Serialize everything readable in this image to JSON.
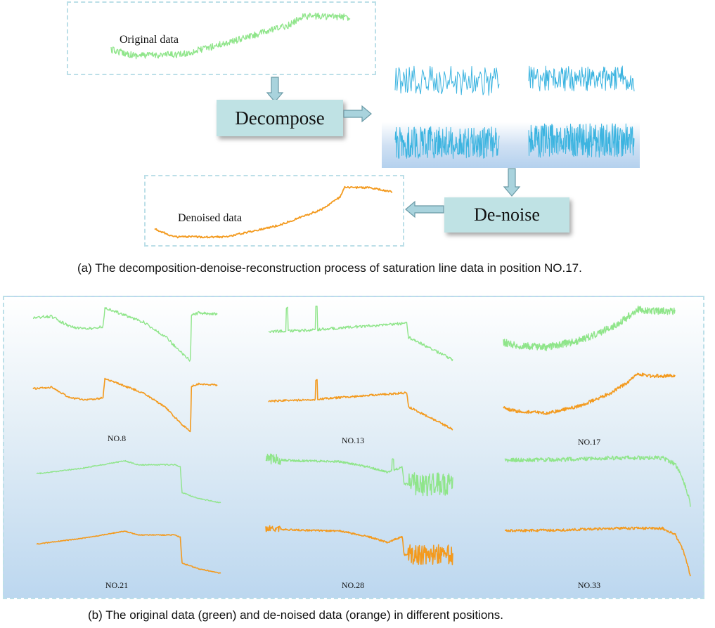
{
  "panel_a": {
    "original_label": "Original data",
    "decompose_label": "Decompose",
    "denoise_label": "De-noise",
    "denoised_label": "Denoised data",
    "caption": "(a) The decomposition-denoise-reconstruction process of saturation line data in position NO.17."
  },
  "panel_b": {
    "caption": "(b) The original data (green) and de-noised data (orange) in different positions.",
    "positions": [
      "NO.8",
      "NO.13",
      "NO.17",
      "NO.21",
      "NO.28",
      "NO.33"
    ]
  },
  "colors": {
    "original": "#8fe58a",
    "denoised": "#f39a1e",
    "component": "#3cb4e0",
    "arrow_fill": "#a9d3dd",
    "arrow_stroke": "#6a9aa6"
  }
}
